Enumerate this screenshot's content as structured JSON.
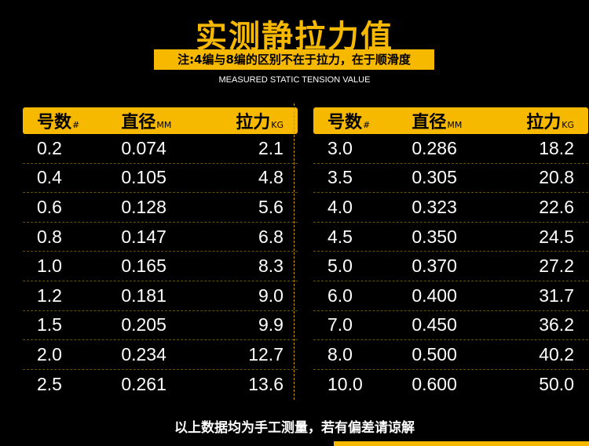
{
  "header": {
    "title": "实测静拉力值",
    "note": "注:4编与8编的区别不在于拉力，在于顺滑度",
    "subtitle": "MEASURED STATIC TENSION VALUE"
  },
  "columns": [
    {
      "label": "号数",
      "unit": "#"
    },
    {
      "label": "直径",
      "unit": "MM"
    },
    {
      "label": "拉力",
      "unit": "KG"
    }
  ],
  "left_rows": [
    [
      "0.2",
      "0.074",
      "2.1"
    ],
    [
      "0.4",
      "0.105",
      "4.8"
    ],
    [
      "0.6",
      "0.128",
      "5.6"
    ],
    [
      "0.8",
      "0.147",
      "6.8"
    ],
    [
      "1.0",
      "0.165",
      "8.3"
    ],
    [
      "1.2",
      "0.181",
      "9.0"
    ],
    [
      "1.5",
      "0.205",
      "9.9"
    ],
    [
      "2.0",
      "0.234",
      "12.7"
    ],
    [
      "2.5",
      "0.261",
      "13.6"
    ]
  ],
  "right_rows": [
    [
      "3.0",
      "0.286",
      "18.2"
    ],
    [
      "3.5",
      "0.305",
      "20.8"
    ],
    [
      "4.0",
      "0.323",
      "22.6"
    ],
    [
      "4.5",
      "0.350",
      "24.5"
    ],
    [
      "5.0",
      "0.370",
      "27.2"
    ],
    [
      "6.0",
      "0.400",
      "31.7"
    ],
    [
      "7.0",
      "0.450",
      "36.2"
    ],
    [
      "8.0",
      "0.500",
      "40.2"
    ],
    [
      "10.0",
      "0.600",
      "50.0"
    ]
  ],
  "footer": "以上数据均为手工测量，若有偏差请谅解",
  "colors": {
    "accent": "#f7b800",
    "background": "#000000"
  }
}
